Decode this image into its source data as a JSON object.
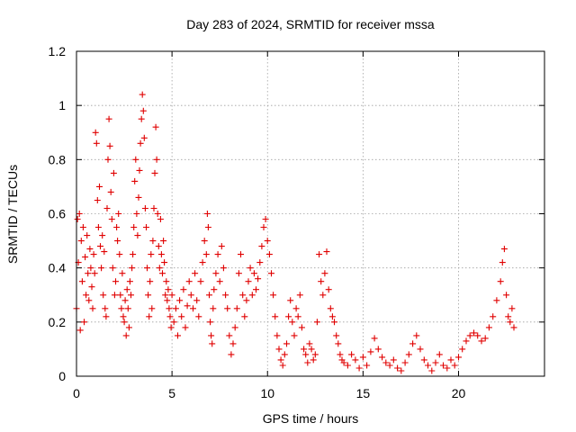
{
  "chart_data": {
    "type": "scatter",
    "title": "Day 283 of 2024, SRMTID for receiver mssa",
    "xlabel": "GPS time / hours",
    "ylabel": "SRMTID / TECUs",
    "xlim": [
      0,
      24.5
    ],
    "ylim": [
      0,
      1.2
    ],
    "xticks": [
      0,
      5,
      10,
      15,
      20
    ],
    "xtick_labels": [
      "0",
      "5",
      "10",
      "15",
      "20"
    ],
    "yticks": [
      0,
      0.2,
      0.4,
      0.6,
      0.8,
      1,
      1.2
    ],
    "ytick_labels": [
      "0",
      "0.2",
      "0.4",
      "0.6",
      "0.8",
      "1",
      "1.2"
    ],
    "grid": true,
    "marker": "+",
    "color": "#e00000",
    "series": [
      {
        "name": "mssa",
        "points": [
          [
            0.0,
            0.25
          ],
          [
            0.05,
            0.58
          ],
          [
            0.1,
            0.42
          ],
          [
            0.15,
            0.6
          ],
          [
            0.2,
            0.17
          ],
          [
            0.25,
            0.5
          ],
          [
            0.3,
            0.35
          ],
          [
            0.35,
            0.55
          ],
          [
            0.4,
            0.2
          ],
          [
            0.45,
            0.44
          ],
          [
            0.5,
            0.3
          ],
          [
            0.55,
            0.52
          ],
          [
            0.6,
            0.38
          ],
          [
            0.65,
            0.28
          ],
          [
            0.7,
            0.47
          ],
          [
            0.75,
            0.4
          ],
          [
            0.8,
            0.33
          ],
          [
            0.85,
            0.25
          ],
          [
            0.9,
            0.45
          ],
          [
            0.95,
            0.38
          ],
          [
            1.0,
            0.9
          ],
          [
            1.05,
            0.86
          ],
          [
            1.1,
            0.65
          ],
          [
            1.15,
            0.55
          ],
          [
            1.2,
            0.7
          ],
          [
            1.25,
            0.48
          ],
          [
            1.3,
            0.4
          ],
          [
            1.35,
            0.52
          ],
          [
            1.4,
            0.3
          ],
          [
            1.45,
            0.46
          ],
          [
            1.5,
            0.25
          ],
          [
            1.55,
            0.22
          ],
          [
            1.6,
            0.62
          ],
          [
            1.65,
            0.8
          ],
          [
            1.7,
            0.95
          ],
          [
            1.75,
            0.85
          ],
          [
            1.8,
            0.68
          ],
          [
            1.85,
            0.58
          ],
          [
            1.9,
            0.4
          ],
          [
            1.95,
            0.75
          ],
          [
            2.0,
            0.3
          ],
          [
            2.05,
            0.35
          ],
          [
            2.1,
            0.55
          ],
          [
            2.15,
            0.5
          ],
          [
            2.2,
            0.6
          ],
          [
            2.25,
            0.45
          ],
          [
            2.3,
            0.3
          ],
          [
            2.35,
            0.25
          ],
          [
            2.4,
            0.38
          ],
          [
            2.45,
            0.22
          ],
          [
            2.5,
            0.2
          ],
          [
            2.55,
            0.28
          ],
          [
            2.6,
            0.15
          ],
          [
            2.65,
            0.32
          ],
          [
            2.7,
            0.25
          ],
          [
            2.75,
            0.18
          ],
          [
            2.8,
            0.35
          ],
          [
            2.85,
            0.3
          ],
          [
            2.9,
            0.4
          ],
          [
            2.95,
            0.45
          ],
          [
            3.0,
            0.55
          ],
          [
            3.05,
            0.72
          ],
          [
            3.1,
            0.8
          ],
          [
            3.15,
            0.6
          ],
          [
            3.2,
            0.52
          ],
          [
            3.25,
            0.66
          ],
          [
            3.3,
            0.76
          ],
          [
            3.35,
            0.86
          ],
          [
            3.4,
            0.95
          ],
          [
            3.45,
            1.04
          ],
          [
            3.5,
            0.98
          ],
          [
            3.55,
            0.88
          ],
          [
            3.6,
            0.62
          ],
          [
            3.65,
            0.55
          ],
          [
            3.7,
            0.4
          ],
          [
            3.75,
            0.3
          ],
          [
            3.8,
            0.22
          ],
          [
            3.85,
            0.35
          ],
          [
            3.9,
            0.45
          ],
          [
            3.95,
            0.25
          ],
          [
            4.0,
            0.5
          ],
          [
            4.05,
            0.62
          ],
          [
            4.1,
            0.75
          ],
          [
            4.15,
            0.92
          ],
          [
            4.2,
            0.8
          ],
          [
            4.25,
            0.6
          ],
          [
            4.3,
            0.48
          ],
          [
            4.35,
            0.4
          ],
          [
            4.4,
            0.58
          ],
          [
            4.45,
            0.45
          ],
          [
            4.5,
            0.38
          ],
          [
            4.55,
            0.5
          ],
          [
            4.6,
            0.42
          ],
          [
            4.65,
            0.3
          ],
          [
            4.7,
            0.35
          ],
          [
            4.75,
            0.28
          ],
          [
            4.8,
            0.32
          ],
          [
            4.85,
            0.25
          ],
          [
            4.9,
            0.22
          ],
          [
            4.95,
            0.18
          ],
          [
            5.0,
            0.3
          ],
          [
            5.1,
            0.2
          ],
          [
            5.2,
            0.25
          ],
          [
            5.3,
            0.15
          ],
          [
            5.4,
            0.28
          ],
          [
            5.5,
            0.22
          ],
          [
            5.6,
            0.32
          ],
          [
            5.7,
            0.18
          ],
          [
            5.8,
            0.26
          ],
          [
            5.9,
            0.35
          ],
          [
            6.0,
            0.3
          ],
          [
            6.1,
            0.25
          ],
          [
            6.2,
            0.38
          ],
          [
            6.3,
            0.28
          ],
          [
            6.4,
            0.22
          ],
          [
            6.5,
            0.35
          ],
          [
            6.6,
            0.42
          ],
          [
            6.7,
            0.5
          ],
          [
            6.8,
            0.45
          ],
          [
            6.9,
            0.55
          ],
          [
            6.85,
            0.6
          ],
          [
            6.95,
            0.3
          ],
          [
            7.0,
            0.2
          ],
          [
            7.05,
            0.15
          ],
          [
            7.1,
            0.12
          ],
          [
            7.15,
            0.25
          ],
          [
            7.2,
            0.32
          ],
          [
            7.3,
            0.38
          ],
          [
            7.4,
            0.45
          ],
          [
            7.5,
            0.35
          ],
          [
            7.6,
            0.48
          ],
          [
            7.7,
            0.4
          ],
          [
            7.8,
            0.3
          ],
          [
            7.9,
            0.25
          ],
          [
            8.0,
            0.15
          ],
          [
            8.1,
            0.08
          ],
          [
            8.2,
            0.12
          ],
          [
            8.3,
            0.18
          ],
          [
            8.4,
            0.25
          ],
          [
            8.5,
            0.38
          ],
          [
            8.6,
            0.45
          ],
          [
            8.7,
            0.3
          ],
          [
            8.8,
            0.22
          ],
          [
            8.9,
            0.28
          ],
          [
            9.0,
            0.35
          ],
          [
            9.1,
            0.4
          ],
          [
            9.2,
            0.3
          ],
          [
            9.3,
            0.38
          ],
          [
            9.4,
            0.32
          ],
          [
            9.5,
            0.36
          ],
          [
            9.6,
            0.42
          ],
          [
            9.7,
            0.48
          ],
          [
            9.8,
            0.55
          ],
          [
            9.9,
            0.58
          ],
          [
            10.0,
            0.5
          ],
          [
            10.1,
            0.45
          ],
          [
            10.2,
            0.38
          ],
          [
            10.3,
            0.3
          ],
          [
            10.4,
            0.22
          ],
          [
            10.5,
            0.15
          ],
          [
            10.6,
            0.1
          ],
          [
            10.7,
            0.06
          ],
          [
            10.8,
            0.04
          ],
          [
            10.9,
            0.08
          ],
          [
            11.0,
            0.12
          ],
          [
            11.1,
            0.22
          ],
          [
            11.2,
            0.28
          ],
          [
            11.3,
            0.2
          ],
          [
            11.4,
            0.15
          ],
          [
            11.5,
            0.25
          ],
          [
            11.6,
            0.22
          ],
          [
            11.7,
            0.3
          ],
          [
            11.8,
            0.18
          ],
          [
            11.9,
            0.1
          ],
          [
            12.0,
            0.08
          ],
          [
            12.1,
            0.05
          ],
          [
            12.2,
            0.12
          ],
          [
            12.3,
            0.1
          ],
          [
            12.4,
            0.06
          ],
          [
            12.5,
            0.08
          ],
          [
            12.6,
            0.2
          ],
          [
            12.7,
            0.45
          ],
          [
            12.8,
            0.35
          ],
          [
            12.9,
            0.3
          ],
          [
            13.0,
            0.38
          ],
          [
            13.1,
            0.46
          ],
          [
            13.2,
            0.32
          ],
          [
            13.3,
            0.25
          ],
          [
            13.4,
            0.22
          ],
          [
            13.5,
            0.2
          ],
          [
            13.6,
            0.15
          ],
          [
            13.7,
            0.12
          ],
          [
            13.8,
            0.08
          ],
          [
            13.9,
            0.06
          ],
          [
            14.0,
            0.05
          ],
          [
            14.2,
            0.04
          ],
          [
            14.4,
            0.08
          ],
          [
            14.6,
            0.06
          ],
          [
            14.8,
            0.03
          ],
          [
            15.0,
            0.07
          ],
          [
            15.2,
            0.04
          ],
          [
            15.4,
            0.09
          ],
          [
            15.6,
            0.14
          ],
          [
            15.8,
            0.1
          ],
          [
            16.0,
            0.07
          ],
          [
            16.2,
            0.05
          ],
          [
            16.4,
            0.04
          ],
          [
            16.6,
            0.06
          ],
          [
            16.8,
            0.03
          ],
          [
            17.0,
            0.02
          ],
          [
            17.2,
            0.05
          ],
          [
            17.4,
            0.08
          ],
          [
            17.6,
            0.12
          ],
          [
            17.8,
            0.15
          ],
          [
            18.0,
            0.1
          ],
          [
            18.2,
            0.06
          ],
          [
            18.4,
            0.04
          ],
          [
            18.6,
            0.02
          ],
          [
            18.8,
            0.05
          ],
          [
            19.0,
            0.08
          ],
          [
            19.2,
            0.04
          ],
          [
            19.4,
            0.03
          ],
          [
            19.6,
            0.06
          ],
          [
            19.8,
            0.04
          ],
          [
            20.0,
            0.07
          ],
          [
            20.2,
            0.1
          ],
          [
            20.4,
            0.13
          ],
          [
            20.6,
            0.15
          ],
          [
            20.8,
            0.16
          ],
          [
            21.0,
            0.15
          ],
          [
            21.2,
            0.13
          ],
          [
            21.4,
            0.14
          ],
          [
            21.6,
            0.18
          ],
          [
            21.8,
            0.22
          ],
          [
            22.0,
            0.28
          ],
          [
            22.2,
            0.35
          ],
          [
            22.3,
            0.42
          ],
          [
            22.4,
            0.47
          ],
          [
            22.5,
            0.3
          ],
          [
            22.6,
            0.22
          ],
          [
            22.7,
            0.2
          ],
          [
            22.8,
            0.25
          ],
          [
            22.9,
            0.18
          ]
        ]
      }
    ]
  }
}
